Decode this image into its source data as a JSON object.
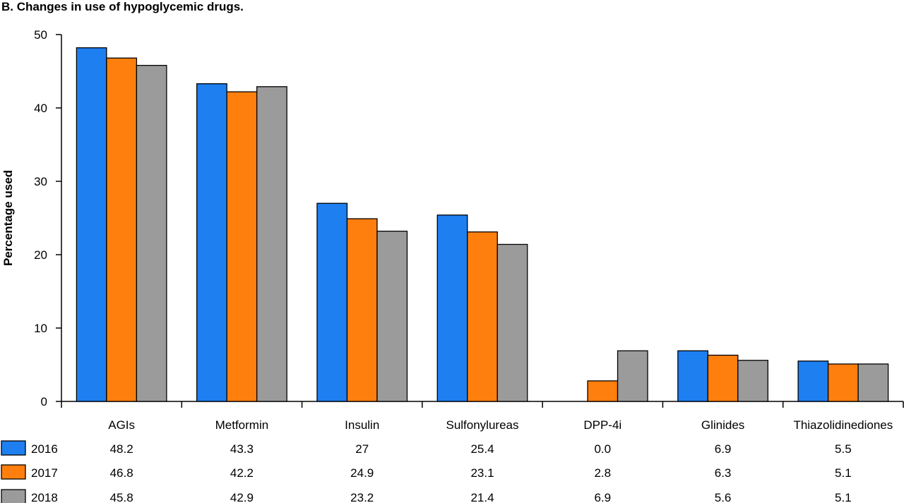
{
  "chart_data": {
    "type": "bar",
    "title": "B. Changes in use of hypoglycemic drugs.",
    "ylabel": "Percentage used",
    "xlabel": "",
    "ylim": [
      0,
      50
    ],
    "yticks": [
      0,
      10,
      20,
      30,
      40,
      50
    ],
    "grid": false,
    "categories": [
      "AGIs",
      "Metformin",
      "Insulin",
      "Sulfonylureas",
      "DPP-4i",
      "Glinides",
      "Thiazolidinediones"
    ],
    "series": [
      {
        "name": "2016",
        "color": "#1e7ff0",
        "values": [
          48.2,
          43.3,
          27,
          25.4,
          0.0,
          6.9,
          5.5
        ],
        "labels": [
          "48.2",
          "43.3",
          "27",
          "25.4",
          "0.0",
          "6.9",
          "5.5"
        ]
      },
      {
        "name": "2017",
        "color": "#ff7f0e",
        "values": [
          46.8,
          42.2,
          24.9,
          23.1,
          2.8,
          6.3,
          5.1
        ],
        "labels": [
          "46.8",
          "42.2",
          "24.9",
          "23.1",
          "2.8",
          "6.3",
          "5.1"
        ]
      },
      {
        "name": "2018",
        "color": "#9b9b9b",
        "values": [
          45.8,
          42.9,
          23.2,
          21.4,
          6.9,
          5.6,
          5.1
        ],
        "labels": [
          "45.8",
          "42.9",
          "23.2",
          "21.4",
          "6.9",
          "5.6",
          "5.1"
        ]
      }
    ],
    "legend": "data table below chart"
  }
}
